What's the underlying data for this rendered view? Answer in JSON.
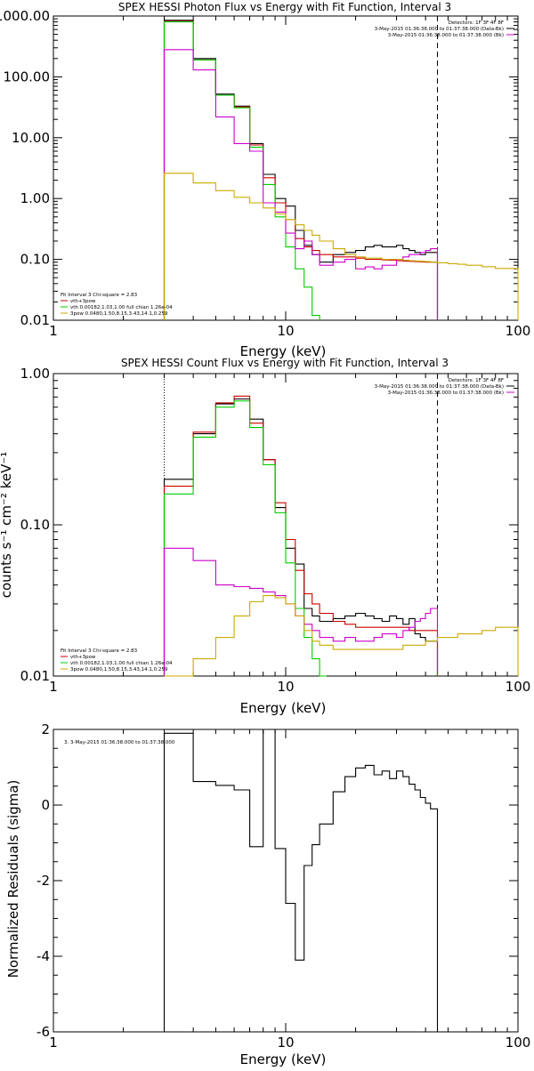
{
  "chart_data": [
    {
      "type": "line",
      "title": "SPEX HESSI Photon Flux vs Energy with Fit Function, Interval 3",
      "xlabel": "Energy (keV)",
      "ylabel": "",
      "xscale": "log",
      "yscale": "log",
      "xlim": [
        1,
        100
      ],
      "ylim": [
        0.01,
        1000
      ],
      "xticks": [
        1,
        10,
        100
      ],
      "xticklabels": [
        "1",
        "10",
        "100"
      ],
      "yticks": [
        0.01,
        0.1,
        1,
        10,
        100,
        1000
      ],
      "yticklabels": [
        "0.01",
        "0.10",
        "1.00",
        "10.00",
        "100.00",
        "1000.00"
      ],
      "vlines": [
        {
          "x": 3,
          "style": "dotted",
          "color": "#000000"
        },
        {
          "x": 45,
          "style": "dashed",
          "color": "#000000"
        }
      ],
      "legend_topright": [
        {
          "text": "Detectors: 1F 3F 4F 8F",
          "color": ""
        },
        {
          "text": "3-May-2015 01:36:38.000 to 01:37:38.000 (Data-Bk)",
          "color": "#000000"
        },
        {
          "text": "3-May-2015 01:36:38.000 to 01:37:38.000 (Bk)",
          "color": "#cc00cc"
        }
      ],
      "legend_bottomleft": [
        {
          "text": "Fit Interval 3   Chi-square = 2.83",
          "color": ""
        },
        {
          "text": "vth+3pow",
          "color": "#cc0000"
        },
        {
          "text": "vth 0.00182,1.03,1.00  full chian 1.26e-04",
          "color": "#00cc00"
        },
        {
          "text": "3pow 0.0480,1.50,8.15,3.43,14.1,0.259",
          "color": "#ccaa00"
        }
      ],
      "series": [
        {
          "name": "Data-Bk",
          "color": "#000000",
          "step": true,
          "edges": [
            3,
            4,
            5,
            6,
            7,
            8,
            9,
            10,
            11,
            12,
            13,
            14,
            16,
            18,
            20,
            22,
            24,
            26,
            28,
            30,
            32,
            34,
            36,
            38,
            40,
            42,
            45
          ],
          "values": [
            850,
            200,
            52,
            33,
            8,
            2.5,
            1.0,
            0.75,
            0.3,
            0.17,
            0.12,
            0.09,
            0.12,
            0.13,
            0.14,
            0.16,
            0.17,
            0.16,
            0.16,
            0.17,
            0.15,
            0.14,
            0.13,
            0.12,
            0.13,
            0.13
          ]
        },
        {
          "name": "vth+3pow",
          "color": "#cc0000",
          "step": true,
          "edges": [
            3,
            4,
            5,
            6,
            7,
            8,
            9,
            10,
            11,
            12,
            13,
            14,
            16,
            18,
            20,
            22,
            24,
            26,
            28,
            30,
            32,
            34,
            36,
            38,
            40,
            42,
            45
          ],
          "values": [
            820,
            190,
            50,
            32,
            7.6,
            2.2,
            0.85,
            0.45,
            0.22,
            0.16,
            0.14,
            0.12,
            0.11,
            0.11,
            0.105,
            0.1,
            0.1,
            0.098,
            0.097,
            0.095,
            0.094,
            0.093,
            0.092,
            0.091,
            0.09,
            0.09
          ]
        },
        {
          "name": "vth",
          "color": "#00cc00",
          "step": true,
          "edges": [
            3,
            4,
            5,
            6,
            7,
            8,
            9,
            10,
            11,
            12,
            13,
            14
          ],
          "values": [
            800,
            190,
            50,
            31,
            7.0,
            1.7,
            0.5,
            0.16,
            0.07,
            0.035,
            0.012
          ]
        },
        {
          "name": "Bk",
          "color": "#cc00cc",
          "step": true,
          "edges": [
            3,
            4,
            5,
            6,
            7,
            8,
            9,
            10,
            11,
            12,
            13,
            14,
            16,
            18,
            20,
            22,
            24,
            26,
            28,
            30,
            32,
            34,
            36,
            38,
            40,
            42,
            45
          ],
          "values": [
            280,
            130,
            22,
            8.0,
            6.0,
            0.85,
            0.6,
            0.27,
            0.15,
            0.2,
            0.12,
            0.08,
            0.09,
            0.1,
            0.07,
            0.075,
            0.07,
            0.08,
            0.08,
            0.1,
            0.11,
            0.12,
            0.12,
            0.13,
            0.14,
            0.15
          ]
        },
        {
          "name": "3pow",
          "color": "#ccaa00",
          "step": true,
          "edges": [
            3,
            4,
            5,
            6,
            7,
            8,
            9,
            10,
            11,
            12,
            13,
            14,
            16,
            18,
            20,
            22,
            24,
            26,
            28,
            30,
            32,
            34,
            36,
            38,
            40,
            42,
            45,
            50,
            55,
            60,
            70,
            80,
            100
          ],
          "values": [
            2.6,
            1.8,
            1.35,
            1.05,
            0.85,
            0.7,
            0.56,
            0.45,
            0.37,
            0.3,
            0.25,
            0.2,
            0.15,
            0.12,
            0.11,
            0.105,
            0.105,
            0.1,
            0.1,
            0.1,
            0.097,
            0.095,
            0.094,
            0.093,
            0.092,
            0.09,
            0.088,
            0.085,
            0.083,
            0.08,
            0.076,
            0.071
          ]
        }
      ]
    },
    {
      "type": "line",
      "title": "SPEX HESSI Count Flux vs Energy with Fit Function, Interval 3",
      "xlabel": "Energy (keV)",
      "ylabel": "counts s⁻¹ cm⁻² keV⁻¹",
      "xscale": "log",
      "yscale": "log",
      "xlim": [
        1,
        100
      ],
      "ylim": [
        0.01,
        1.0
      ],
      "xticks": [
        1,
        10,
        100
      ],
      "xticklabels": [
        "1",
        "10",
        "100"
      ],
      "yticks": [
        0.01,
        0.1,
        1.0
      ],
      "yticklabels": [
        "0.01",
        "0.10",
        "1.00"
      ],
      "vlines": [
        {
          "x": 3,
          "style": "dotted",
          "color": "#000000"
        },
        {
          "x": 45,
          "style": "dashed",
          "color": "#000000"
        }
      ],
      "legend_topright": [
        {
          "text": "Detectors: 1F 3F 4F 8F",
          "color": ""
        },
        {
          "text": "3-May-2015 01:36:38.000 to 01:37:38.000 (Data-Bk)",
          "color": "#000000"
        },
        {
          "text": "3-May-2015 01:36:38.000 to 01:37:38.000 (Bk)",
          "color": "#cc00cc"
        }
      ],
      "legend_bottomleft": [
        {
          "text": "Fit Interval 3   Chi-square = 2.83",
          "color": ""
        },
        {
          "text": "vth+3pow",
          "color": "#cc0000"
        },
        {
          "text": "vth 0.00182,1.03,1.00  full chian 1.26e-04",
          "color": "#00cc00"
        },
        {
          "text": "3pow 0.0480,1.50,8.15,3.43,14.1,0.259",
          "color": "#ccaa00"
        }
      ],
      "series": [
        {
          "name": "Data-Bk",
          "color": "#000000",
          "step": true,
          "edges": [
            3,
            4,
            5,
            6,
            7,
            8,
            9,
            10,
            11,
            12,
            13,
            14,
            16,
            18,
            20,
            22,
            24,
            26,
            28,
            30,
            32,
            34,
            36,
            38,
            40,
            42,
            45
          ],
          "values": [
            0.2,
            0.4,
            0.63,
            0.68,
            0.5,
            0.27,
            0.13,
            0.07,
            0.055,
            0.028,
            0.025,
            0.023,
            0.024,
            0.025,
            0.026,
            0.025,
            0.024,
            0.023,
            0.025,
            0.024,
            0.022,
            0.024,
            0.019,
            0.018,
            0.017,
            0.017
          ]
        },
        {
          "name": "vth+3pow",
          "color": "#cc0000",
          "step": true,
          "edges": [
            3,
            4,
            5,
            6,
            7,
            8,
            9,
            10,
            11,
            12,
            13,
            14,
            16,
            18,
            20,
            22,
            24,
            26,
            28,
            30,
            32,
            34,
            36,
            38,
            40,
            42,
            45
          ],
          "values": [
            0.18,
            0.41,
            0.64,
            0.71,
            0.47,
            0.27,
            0.14,
            0.08,
            0.05,
            0.035,
            0.03,
            0.026,
            0.023,
            0.022,
            0.021,
            0.021,
            0.021,
            0.021,
            0.021,
            0.021,
            0.021,
            0.02,
            0.02,
            0.02,
            0.02,
            0.02
          ]
        },
        {
          "name": "vth",
          "color": "#00cc00",
          "step": true,
          "edges": [
            3,
            4,
            5,
            6,
            7,
            8,
            9,
            10,
            11,
            12,
            13,
            14,
            15
          ],
          "values": [
            0.16,
            0.38,
            0.6,
            0.66,
            0.44,
            0.25,
            0.12,
            0.056,
            0.028,
            0.018,
            0.013,
            0.01
          ]
        },
        {
          "name": "Bk",
          "color": "#cc00cc",
          "step": true,
          "edges": [
            3,
            4,
            5,
            6,
            7,
            8,
            9,
            10,
            11,
            12,
            13,
            14,
            16,
            18,
            20,
            22,
            24,
            26,
            28,
            30,
            32,
            34,
            36,
            38,
            40,
            42,
            45
          ],
          "values": [
            0.07,
            0.058,
            0.04,
            0.039,
            0.038,
            0.036,
            0.034,
            0.03,
            0.025,
            0.022,
            0.02,
            0.018,
            0.017,
            0.018,
            0.017,
            0.017,
            0.018,
            0.019,
            0.019,
            0.018,
            0.02,
            0.021,
            0.023,
            0.024,
            0.026,
            0.028
          ]
        },
        {
          "name": "3pow",
          "color": "#ccaa00",
          "step": true,
          "edges": [
            3,
            4,
            5,
            6,
            7,
            8,
            9,
            10,
            11,
            12,
            13,
            14,
            16,
            18,
            20,
            22,
            24,
            26,
            28,
            30,
            32,
            34,
            36,
            38,
            40,
            42,
            45,
            50,
            55,
            60,
            70,
            80,
            100
          ],
          "values": [
            0.01,
            0.013,
            0.018,
            0.025,
            0.031,
            0.034,
            0.033,
            0.03,
            0.025,
            0.02,
            0.017,
            0.016,
            0.015,
            0.015,
            0.015,
            0.015,
            0.015,
            0.015,
            0.015,
            0.015,
            0.016,
            0.016,
            0.016,
            0.016,
            0.017,
            0.017,
            0.018,
            0.018,
            0.019,
            0.019,
            0.02,
            0.021
          ]
        }
      ]
    },
    {
      "type": "line",
      "title": "",
      "xlabel": "Energy (keV)",
      "ylabel": "Normalized Residuals (sigma)",
      "xscale": "log",
      "yscale": "linear",
      "xlim": [
        1,
        100
      ],
      "ylim": [
        -6,
        2
      ],
      "xticks": [
        1,
        10,
        100
      ],
      "xticklabels": [
        "1",
        "10",
        "100"
      ],
      "yticks": [
        -6,
        -4,
        -2,
        0,
        2
      ],
      "yticklabels": [
        "-6",
        "-4",
        "-2",
        "0",
        "2"
      ],
      "legend_topleft": [
        {
          "text": "3.  3-May-2015 01:36:38.000 to 01:37:38.000",
          "color": "#000000"
        }
      ],
      "series": [
        {
          "name": "",
          "color": "#000000",
          "step": true,
          "drop_to": -6,
          "edges": [
            3,
            4,
            5,
            6,
            7,
            8,
            9,
            10,
            11,
            12,
            13,
            14,
            16,
            18,
            20,
            22,
            24,
            26,
            28,
            30,
            32,
            34,
            36,
            38,
            40,
            42,
            45
          ],
          "values": [
            1.9,
            0.62,
            0.52,
            0.4,
            -1.1,
            2.0,
            -1.15,
            -2.6,
            -4.1,
            -1.6,
            -1.05,
            -0.5,
            0.35,
            0.75,
            0.98,
            1.05,
            0.8,
            0.9,
            0.7,
            0.9,
            0.75,
            0.55,
            0.4,
            0.2,
            0.05,
            -0.1
          ]
        }
      ]
    }
  ]
}
